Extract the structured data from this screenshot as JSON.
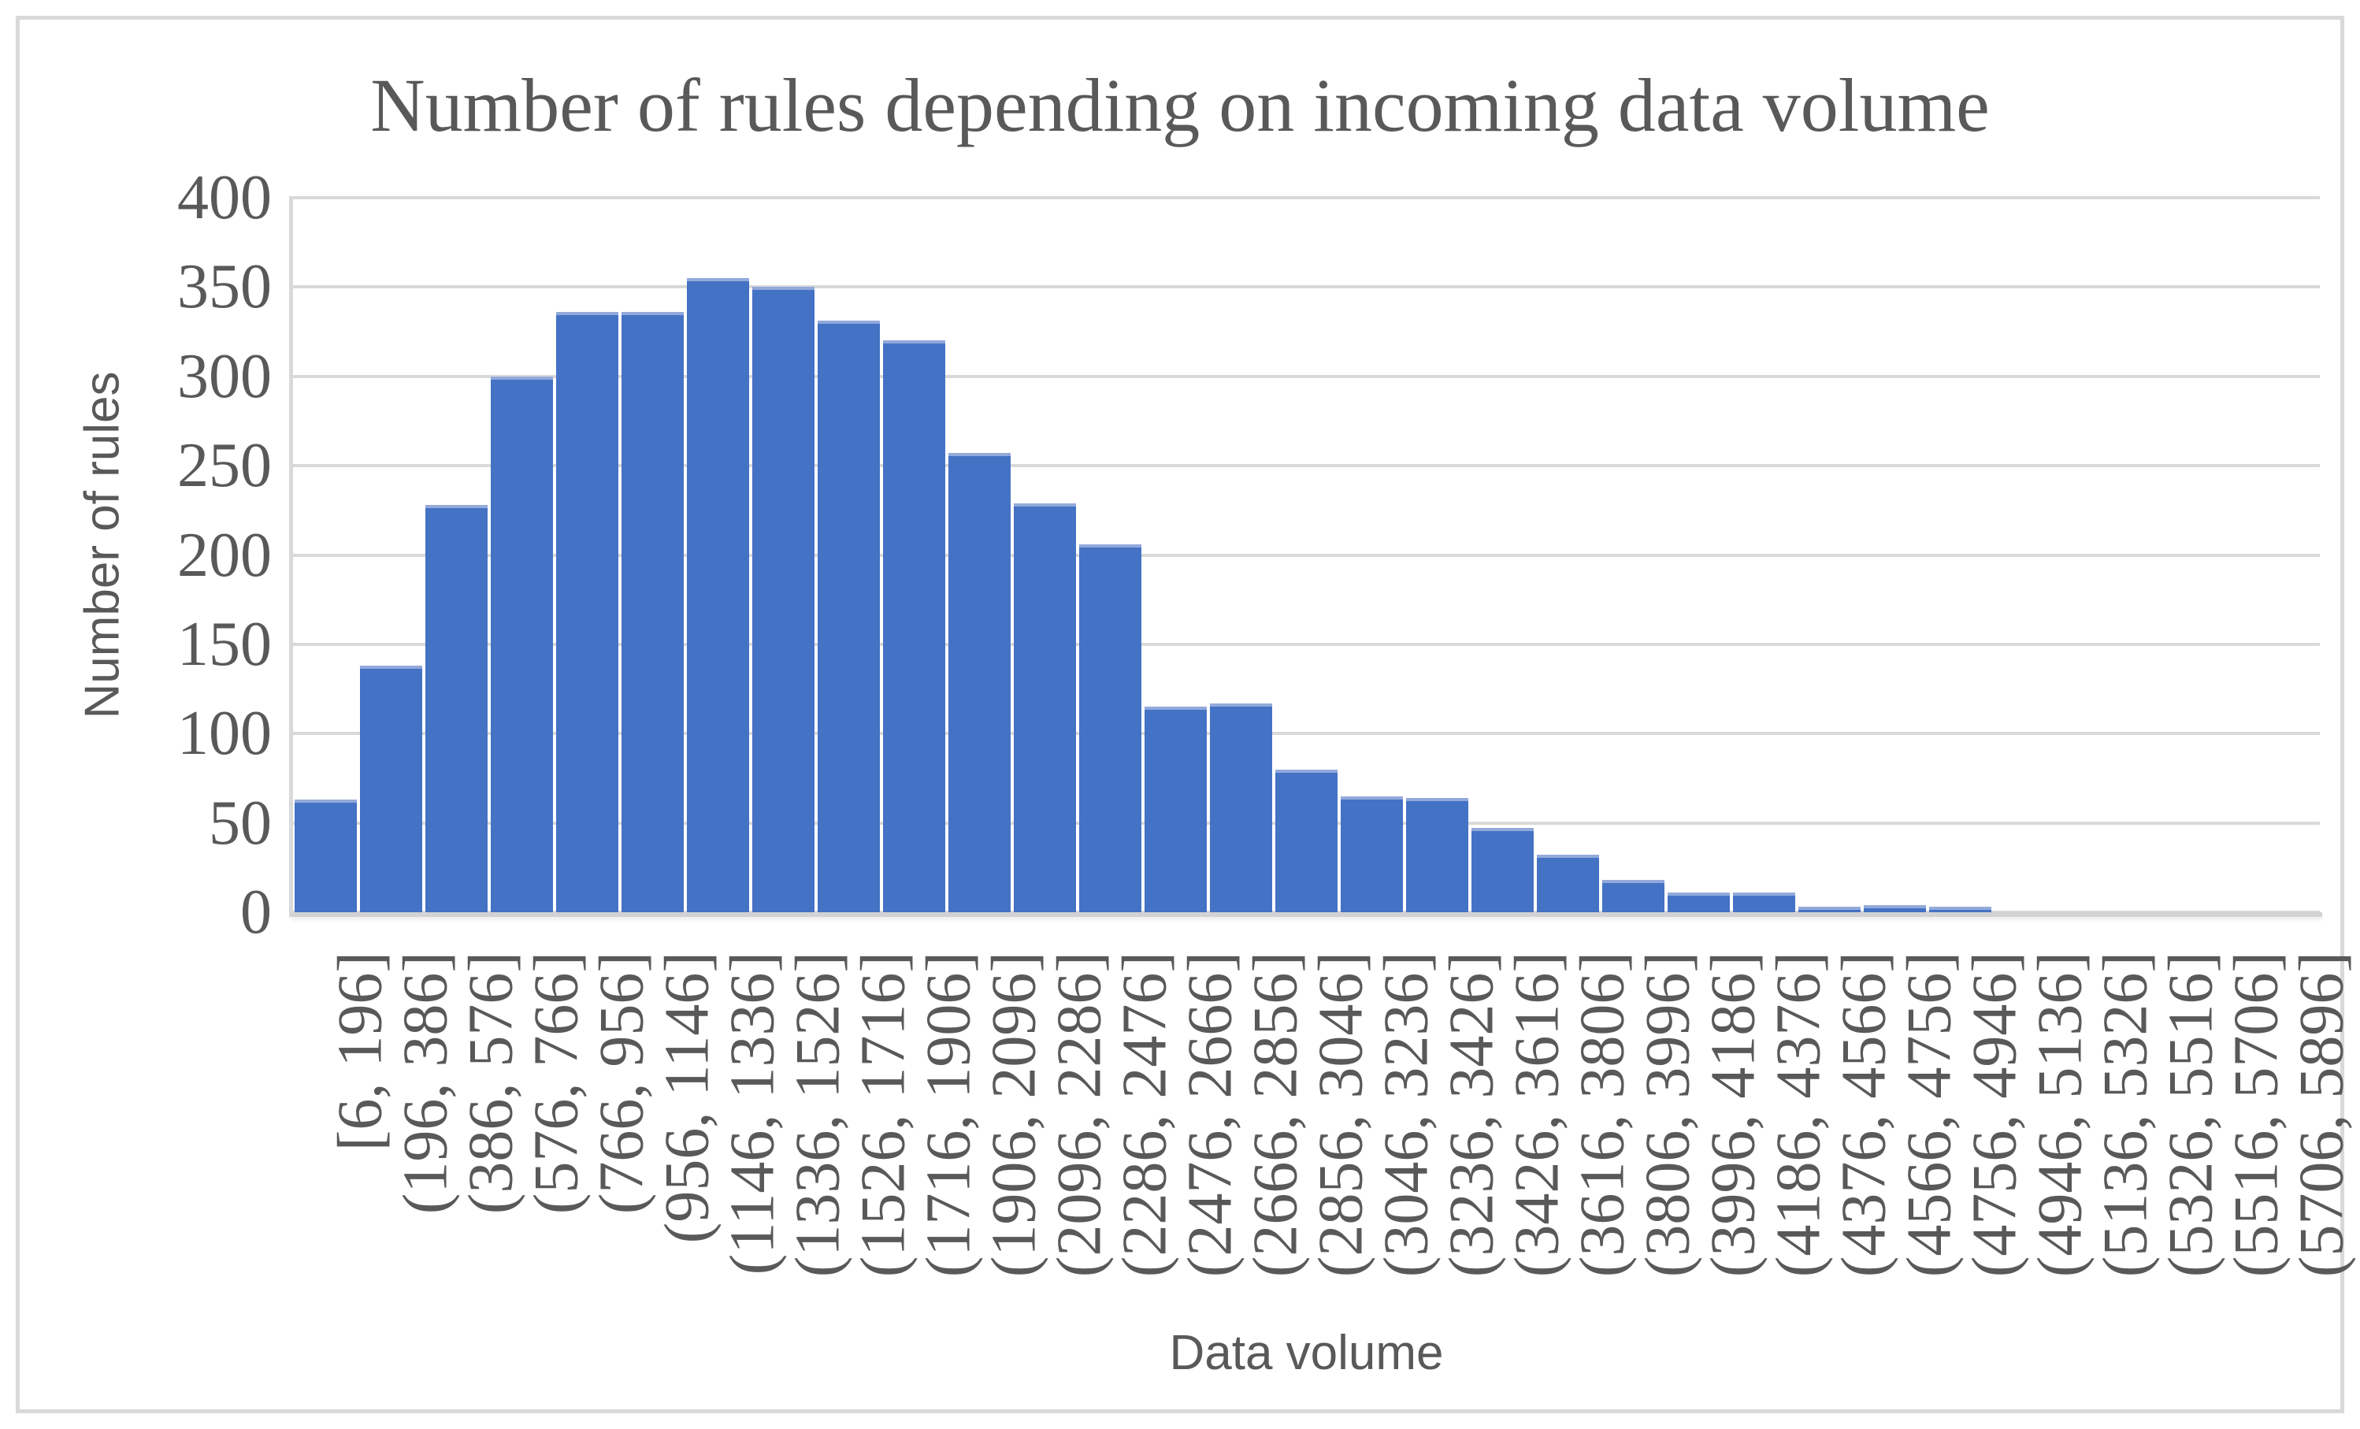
{
  "chart_data": {
    "type": "bar",
    "title": "Number of rules depending on incoming data volume",
    "xlabel": "Data volume",
    "ylabel": "Number of rules",
    "categories": [
      "[6, 196]",
      "(196, 386]",
      "(386, 576]",
      "(576, 766]",
      "(766, 956]",
      "(956, 1146]",
      "(1146, 1336]",
      "(1336, 1526]",
      "(1526, 1716]",
      "(1716, 1906]",
      "(1906, 2096]",
      "(2096, 2286]",
      "(2286, 2476]",
      "(2476, 2666]",
      "(2666, 2856]",
      "(2856, 3046]",
      "(3046, 3236]",
      "(3236, 3426]",
      "(3426, 3616]",
      "(3616, 3806]",
      "(3806, 3996]",
      "(3996, 4186]",
      "(4186, 4376]",
      "(4376, 4566]",
      "(4566, 4756]",
      "(4756, 4946]",
      "(4946, 5136]",
      "(5136, 5326]",
      "(5326, 5516]",
      "(5516, 5706]",
      "(5706, 5896]"
    ],
    "values": [
      63,
      138,
      228,
      300,
      336,
      336,
      355,
      350,
      331,
      320,
      257,
      229,
      206,
      115,
      117,
      80,
      65,
      64,
      47,
      32,
      18,
      11,
      11,
      3,
      4,
      3,
      0,
      0,
      0,
      0,
      0
    ],
    "ylim": [
      0,
      400
    ],
    "yticks": [
      0,
      50,
      100,
      150,
      200,
      250,
      300,
      350,
      400
    ],
    "grid": true,
    "legend_position": "none",
    "bar_color": "#4472C4",
    "bar_edge_color": "#92A9DB",
    "gridline_color": "#D9D9D9",
    "axis_text_color": "#595959",
    "frame_border_color": "#D9D9DB"
  }
}
